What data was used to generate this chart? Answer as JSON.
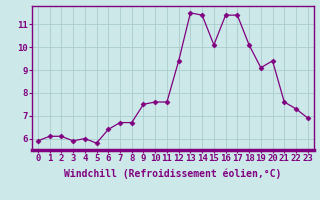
{
  "x": [
    0,
    1,
    2,
    3,
    4,
    5,
    6,
    7,
    8,
    9,
    10,
    11,
    12,
    13,
    14,
    15,
    16,
    17,
    18,
    19,
    20,
    21,
    22,
    23
  ],
  "y": [
    5.9,
    6.1,
    6.1,
    5.9,
    6.0,
    5.8,
    6.4,
    6.7,
    6.7,
    7.5,
    7.6,
    7.6,
    9.4,
    11.5,
    11.4,
    10.1,
    11.4,
    11.4,
    10.1,
    9.1,
    9.4,
    7.6,
    7.3,
    6.9
  ],
  "line_color": "#800080",
  "marker": "D",
  "marker_size": 2.5,
  "bg_color": "#cce8e8",
  "grid_color": "#aacccc",
  "spine_color": "#800080",
  "xlabel": "Windchill (Refroidissement éolien,°C)",
  "xlabel_fontsize": 7,
  "yticks": [
    6,
    7,
    8,
    9,
    10,
    11
  ],
  "xticks": [
    0,
    1,
    2,
    3,
    4,
    5,
    6,
    7,
    8,
    9,
    10,
    11,
    12,
    13,
    14,
    15,
    16,
    17,
    18,
    19,
    20,
    21,
    22,
    23
  ],
  "xtick_labels": [
    "0",
    "1",
    "2",
    "3",
    "4",
    "5",
    "6",
    "7",
    "8",
    "9",
    "10",
    "11",
    "12",
    "13",
    "14",
    "15",
    "16",
    "17",
    "18",
    "19",
    "20",
    "21",
    "22",
    "23"
  ],
  "ylim": [
    5.5,
    11.8
  ],
  "xlim": [
    -0.5,
    23.5
  ],
  "tick_fontsize": 6.5,
  "tick_color": "#800080",
  "xlabel_color": "#800080"
}
